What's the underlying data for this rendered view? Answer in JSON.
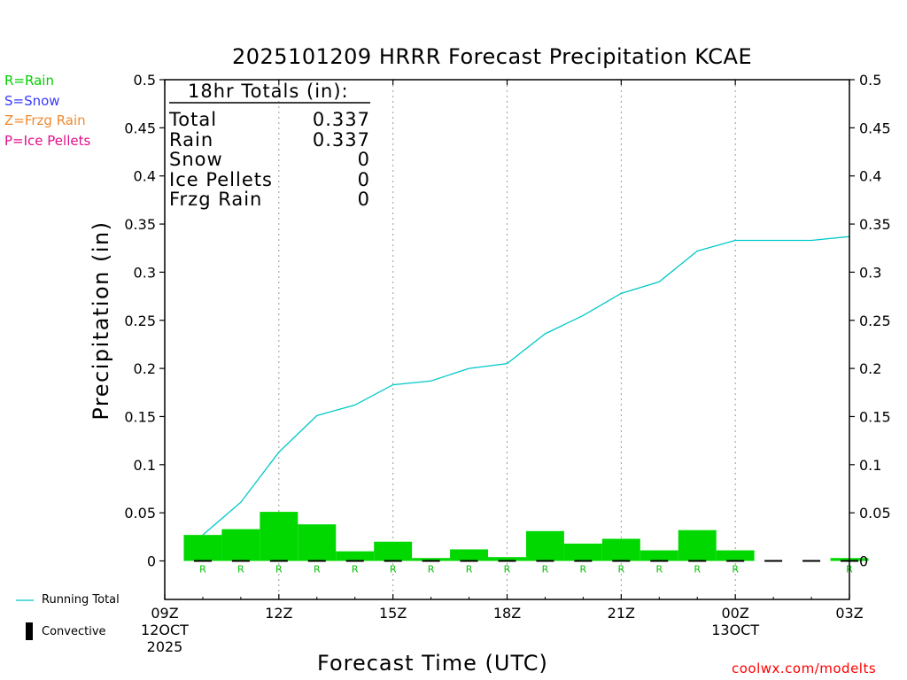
{
  "title": "2025101209 HRRR Forecast Precipitation KCAE",
  "credit": "coolwx.com/modelts",
  "ptype_legend": [
    {
      "label": "R=Rain",
      "color": "#00d000"
    },
    {
      "label": "S=Snow",
      "color": "#3a3aff"
    },
    {
      "label": "Z=Frzg Rain",
      "color": "#f08a30"
    },
    {
      "label": "P=Ice Pellets",
      "color": "#e0108a"
    }
  ],
  "bottom_legend": {
    "running_total": "Running Total",
    "convective": "Convective"
  },
  "totals": {
    "header": "18hr Totals (in):",
    "rows": [
      {
        "label": "Total",
        "value": "0.337"
      },
      {
        "label": "Rain",
        "value": "0.337"
      },
      {
        "label": "Snow",
        "value": "0"
      },
      {
        "label": "Ice Pellets",
        "value": "0"
      },
      {
        "label": "Frzg Rain",
        "value": "0"
      }
    ]
  },
  "chart_data": {
    "type": "bar",
    "title": "2025101209 HRRR Forecast Precipitation KCAE",
    "xlabel": "Forecast Time (UTC)",
    "ylabel": "Precipitation (in)",
    "ylim": [
      -0.04,
      0.5
    ],
    "yticks": [
      0,
      0.05,
      0.1,
      0.15,
      0.2,
      0.25,
      0.3,
      0.35,
      0.4,
      0.45,
      0.5
    ],
    "ytick_labels": [
      "0",
      "0.05",
      "0.1",
      "0.15",
      "0.2",
      "0.25",
      "0.3",
      "0.35",
      "0.4",
      "0.45",
      "0.5"
    ],
    "xlim_hours": [
      0,
      18
    ],
    "xticks": [
      {
        "hour": 0,
        "lines": [
          "09Z",
          "12OCT",
          "2025"
        ]
      },
      {
        "hour": 3,
        "lines": [
          "12Z"
        ]
      },
      {
        "hour": 6,
        "lines": [
          "15Z"
        ]
      },
      {
        "hour": 9,
        "lines": [
          "18Z"
        ]
      },
      {
        "hour": 12,
        "lines": [
          "21Z"
        ]
      },
      {
        "hour": 15,
        "lines": [
          "00Z",
          "13OCT"
        ]
      },
      {
        "hour": 18,
        "lines": [
          "03Z"
        ]
      }
    ],
    "grid": "dotted vertical at labeled hours",
    "forecast_hours": [
      1,
      2,
      3,
      4,
      5,
      6,
      7,
      8,
      9,
      10,
      11,
      12,
      13,
      14,
      15,
      16,
      17,
      18
    ],
    "hourly_precip": [
      0.027,
      0.033,
      0.051,
      0.038,
      0.01,
      0.02,
      0.003,
      0.012,
      0.004,
      0.031,
      0.018,
      0.023,
      0.011,
      0.032,
      0.011,
      0,
      0,
      0.003
    ],
    "ptype_marks": [
      "R",
      "R",
      "R",
      "R",
      "R",
      "R",
      "R",
      "R",
      "R",
      "R",
      "R",
      "R",
      "R",
      "R",
      "R",
      "",
      "",
      "R"
    ],
    "running_total": [
      0.027,
      0.061,
      0.113,
      0.151,
      0.162,
      0.183,
      0.187,
      0.2,
      0.205,
      0.236,
      0.255,
      0.278,
      0.29,
      0.322,
      0.333,
      0.333,
      0.333,
      0.337
    ],
    "series": [
      {
        "name": "Running Total",
        "type": "line",
        "color": "#00c8c8"
      },
      {
        "name": "Convective",
        "type": "bar",
        "color": "#000000"
      }
    ],
    "bar_color": "#00d800"
  }
}
